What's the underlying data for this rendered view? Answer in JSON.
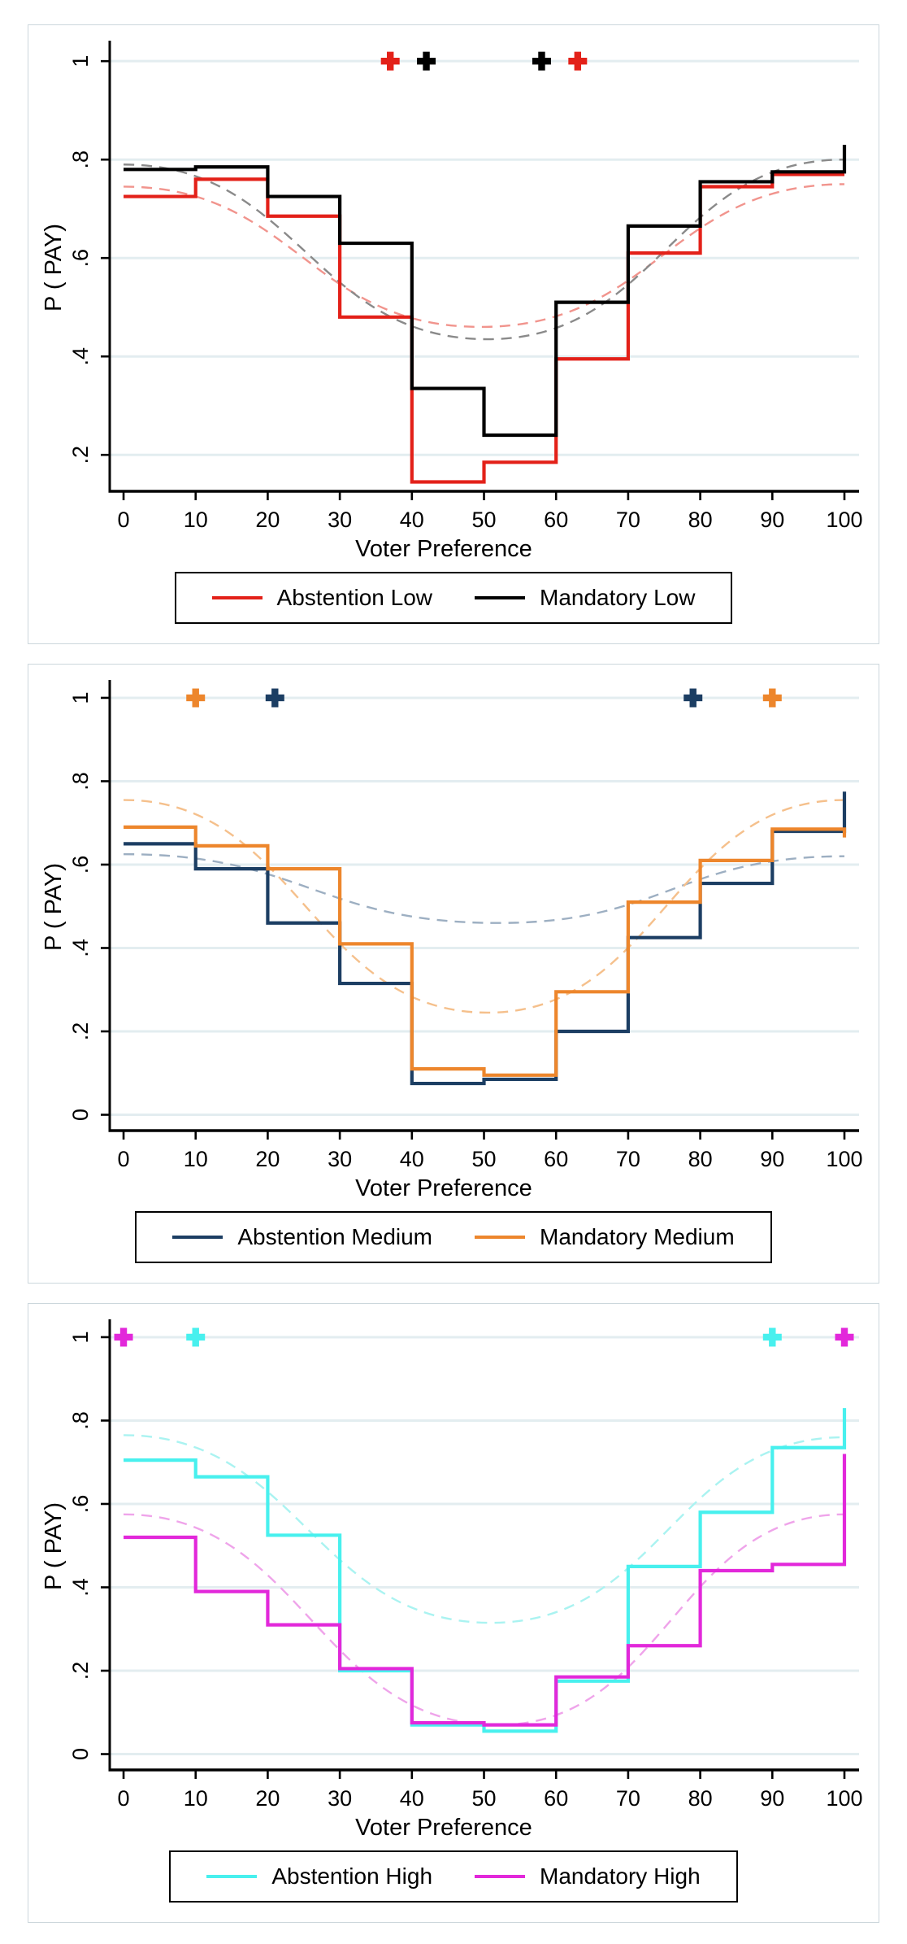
{
  "figure": {
    "background": "#ffffff",
    "panel_border_color": "#ccd7dc",
    "gridline_color": "#e3edf0",
    "axis_color": "#000000",
    "text_color": "#000000"
  },
  "chart_data": [
    {
      "type": "line",
      "subtype": "step",
      "panel": "low",
      "xlabel": "Voter Preference",
      "ylabel": "P ( PAY)",
      "xlim": [
        -1.92,
        102.03
      ],
      "ylim": [
        0.126,
        1.035
      ],
      "x_ticks": [
        0,
        10,
        20,
        30,
        40,
        50,
        60,
        70,
        80,
        90,
        100
      ],
      "y_ticks": [
        {
          "v": 1.0,
          "label": "1"
        },
        {
          "v": 0.8,
          "label": ".8"
        },
        {
          "v": 0.6,
          "label": ".6"
        },
        {
          "v": 0.4,
          "label": ".4"
        },
        {
          "v": 0.2,
          "label": ".2"
        }
      ],
      "grid": true,
      "legend_position": "bottom",
      "step_edges": [
        0,
        10,
        20,
        30,
        40,
        50,
        60,
        70,
        80,
        90,
        100
      ],
      "series": [
        {
          "name": "Abstention Low",
          "color": "#e32119",
          "values": [
            0.725,
            0.76,
            0.685,
            0.48,
            0.145,
            0.185,
            0.395,
            0.61,
            0.745,
            0.77
          ],
          "end_value": null
        },
        {
          "name": "Mandatory Low",
          "color": "#000000",
          "values": [
            0.78,
            0.785,
            0.725,
            0.63,
            0.335,
            0.24,
            0.51,
            0.665,
            0.755,
            0.775
          ],
          "end_value": 0.83
        }
      ],
      "fitted_curves": [
        {
          "name": "Abstention Low fitted",
          "color": "#f1948d",
          "start": 0.745,
          "min": 0.46,
          "min_x": 49.5,
          "end": 0.75
        },
        {
          "name": "Mandatory Low fitted",
          "color": "#8a8a8a",
          "start": 0.79,
          "min": 0.435,
          "min_x": 50.5,
          "end": 0.8
        }
      ],
      "markers": [
        {
          "x": 37,
          "y": 1,
          "color": "#e32119"
        },
        {
          "x": 42,
          "y": 1,
          "color": "#000000"
        },
        {
          "x": 58,
          "y": 1,
          "color": "#000000"
        },
        {
          "x": 63,
          "y": 1,
          "color": "#e32119"
        }
      ]
    },
    {
      "type": "line",
      "subtype": "step",
      "panel": "medium",
      "xlabel": "Voter Preference",
      "ylabel": "P ( PAY)",
      "xlim": [
        -1.92,
        102.03
      ],
      "ylim": [
        -0.038,
        1.035
      ],
      "x_ticks": [
        0,
        10,
        20,
        30,
        40,
        50,
        60,
        70,
        80,
        90,
        100
      ],
      "y_ticks": [
        {
          "v": 1.0,
          "label": "1"
        },
        {
          "v": 0.8,
          "label": ".8"
        },
        {
          "v": 0.6,
          "label": ".6"
        },
        {
          "v": 0.4,
          "label": ".4"
        },
        {
          "v": 0.2,
          "label": ".2"
        },
        {
          "v": 0.0,
          "label": "0"
        }
      ],
      "grid": true,
      "legend_position": "bottom",
      "step_edges": [
        0,
        10,
        20,
        30,
        40,
        50,
        60,
        70,
        80,
        90,
        100
      ],
      "series": [
        {
          "name": "Abstention Medium",
          "color": "#1c3e63",
          "values": [
            0.65,
            0.59,
            0.46,
            0.315,
            0.075,
            0.085,
            0.2,
            0.425,
            0.555,
            0.68
          ],
          "end_value": 0.775
        },
        {
          "name": "Mandatory Medium",
          "color": "#ed862c",
          "values": [
            0.69,
            0.645,
            0.59,
            0.41,
            0.11,
            0.095,
            0.295,
            0.51,
            0.61,
            0.685
          ],
          "end_value": 0.665
        }
      ],
      "fitted_curves": [
        {
          "name": "Abstention Medium fitted",
          "color": "#9dafc2",
          "start": 0.625,
          "min": 0.46,
          "min_x": 52,
          "end": 0.62
        },
        {
          "name": "Mandatory Medium fitted",
          "color": "#f5c08c",
          "start": 0.755,
          "min": 0.245,
          "min_x": 50.5,
          "end": 0.755
        }
      ],
      "markers": [
        {
          "x": 10,
          "y": 1,
          "color": "#ed862c"
        },
        {
          "x": 21,
          "y": 1,
          "color": "#1c3e63"
        },
        {
          "x": 79,
          "y": 1,
          "color": "#1c3e63"
        },
        {
          "x": 90,
          "y": 1,
          "color": "#ed862c"
        }
      ]
    },
    {
      "type": "line",
      "subtype": "step",
      "panel": "high",
      "xlabel": "Voter Preference",
      "ylabel": "P ( PAY)",
      "xlim": [
        -1.92,
        102.03
      ],
      "ylim": [
        -0.038,
        1.035
      ],
      "x_ticks": [
        0,
        10,
        20,
        30,
        40,
        50,
        60,
        70,
        80,
        90,
        100
      ],
      "y_ticks": [
        {
          "v": 1.0,
          "label": "1"
        },
        {
          "v": 0.8,
          "label": ".8"
        },
        {
          "v": 0.6,
          "label": ".6"
        },
        {
          "v": 0.4,
          "label": ".4"
        },
        {
          "v": 0.2,
          "label": ".2"
        },
        {
          "v": 0.0,
          "label": "0"
        }
      ],
      "grid": true,
      "legend_position": "bottom",
      "step_edges": [
        0,
        10,
        20,
        30,
        40,
        50,
        60,
        70,
        80,
        90,
        100
      ],
      "series": [
        {
          "name": "Abstention High",
          "color": "#48f0ee",
          "values": [
            0.705,
            0.665,
            0.525,
            0.2,
            0.07,
            0.055,
            0.175,
            0.45,
            0.58,
            0.735
          ],
          "end_value": 0.83
        },
        {
          "name": "Mandatory High",
          "color": "#e228da",
          "values": [
            0.52,
            0.39,
            0.31,
            0.205,
            0.075,
            0.07,
            0.185,
            0.26,
            0.44,
            0.455
          ],
          "end_value": 0.72
        }
      ],
      "fitted_curves": [
        {
          "name": "Abstention High fitted",
          "color": "#aaf3f1",
          "start": 0.765,
          "min": 0.315,
          "min_x": 51,
          "end": 0.76
        },
        {
          "name": "Mandatory High fitted",
          "color": "#efa4ea",
          "start": 0.575,
          "min": 0.07,
          "min_x": 52,
          "end": 0.575
        }
      ],
      "markers": [
        {
          "x": 0,
          "y": 1,
          "color": "#e228da"
        },
        {
          "x": 10,
          "y": 1,
          "color": "#48f0ee"
        },
        {
          "x": 90,
          "y": 1,
          "color": "#48f0ee"
        },
        {
          "x": 100,
          "y": 1,
          "color": "#e228da"
        }
      ]
    }
  ]
}
